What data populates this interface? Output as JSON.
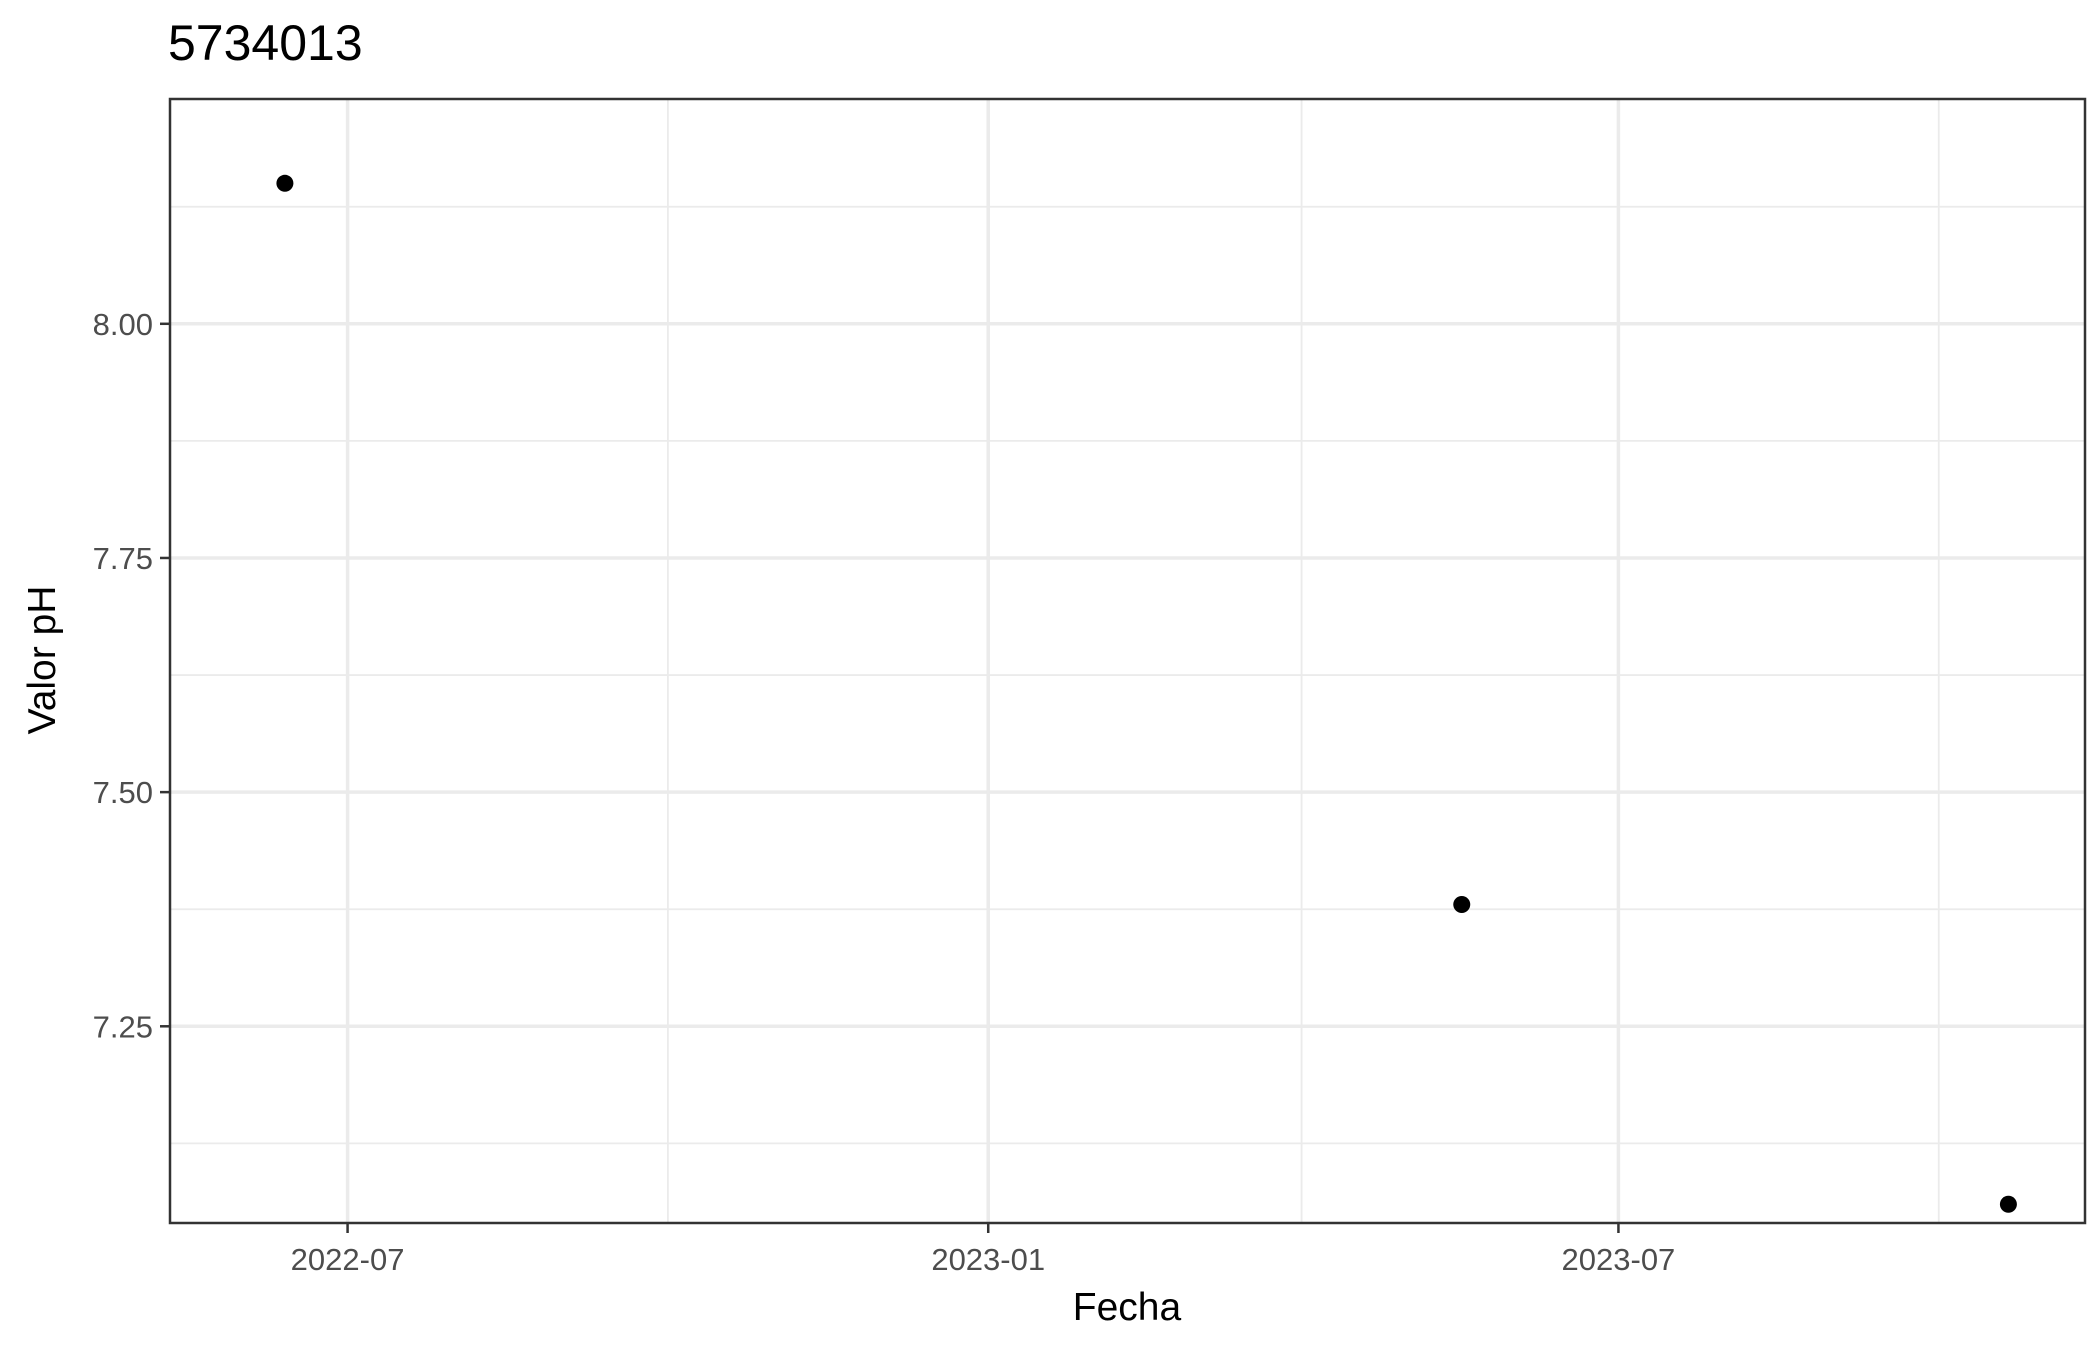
{
  "chart_data": {
    "type": "scatter",
    "title": "5734013",
    "xlabel": "Fecha",
    "ylabel": "Valor pH",
    "x_axis_type": "date",
    "xlim": [
      "2022-05-11",
      "2023-11-12"
    ],
    "ylim": [
      7.04,
      8.24
    ],
    "x_ticks": [
      "2022-07-01",
      "2023-01-01",
      "2023-07-01"
    ],
    "x_tick_labels": [
      "2022-07",
      "2023-01",
      "2023-07"
    ],
    "x_minor_ticks": [
      "2022-10-01",
      "2023-04-01",
      "2023-10-01"
    ],
    "y_ticks": [
      7.25,
      7.5,
      7.75,
      8.0
    ],
    "y_tick_labels": [
      "7.25",
      "7.50",
      "7.75",
      "8.00"
    ],
    "y_minor_ticks": [
      7.125,
      7.375,
      7.625,
      7.875,
      8.125
    ],
    "grid": true,
    "legend": "none",
    "point_color": "#000000",
    "points": [
      {
        "x": "2022-06-13",
        "y": 8.15
      },
      {
        "x": "2023-05-17",
        "y": 7.38
      },
      {
        "x": "2023-10-21",
        "y": 7.06
      }
    ]
  }
}
